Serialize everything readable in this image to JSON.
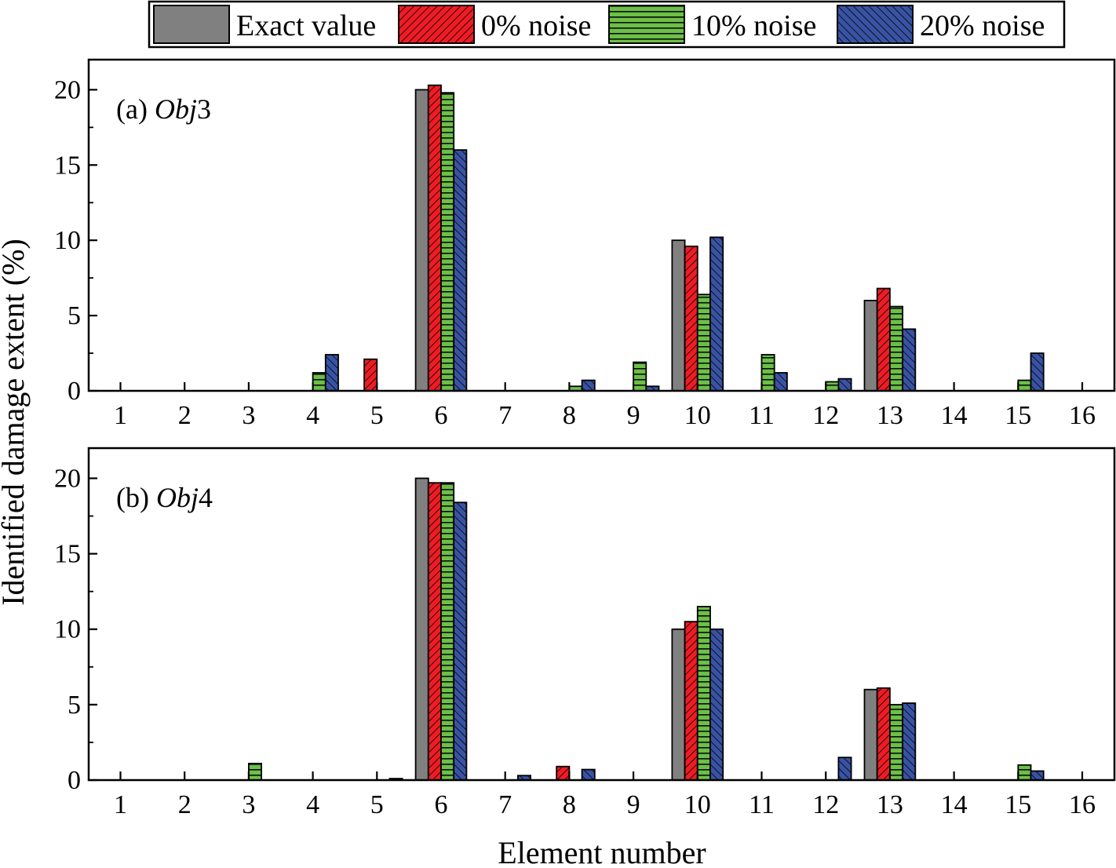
{
  "chart_data": [
    {
      "type": "bar",
      "panel_label_prefix": "(a)",
      "panel_label_obj": "Obj",
      "panel_label_num": "3",
      "categories": [
        "1",
        "2",
        "3",
        "4",
        "5",
        "6",
        "7",
        "8",
        "9",
        "10",
        "11",
        "12",
        "13",
        "14",
        "15",
        "16"
      ],
      "series": [
        {
          "name": "Exact value",
          "values": [
            0,
            0,
            0,
            0,
            0,
            20,
            0,
            0,
            0,
            10,
            0,
            0,
            6,
            0,
            0,
            0
          ]
        },
        {
          "name": "0% noise",
          "values": [
            0,
            0,
            0,
            0,
            2.1,
            20.3,
            0,
            0,
            0,
            9.6,
            0,
            0,
            6.8,
            0,
            0,
            0
          ]
        },
        {
          "name": "10% noise",
          "values": [
            0,
            0,
            0,
            1.2,
            0,
            19.8,
            0,
            0.3,
            1.9,
            6.4,
            2.4,
            0.6,
            5.6,
            0,
            0.7,
            0
          ]
        },
        {
          "name": "20% noise",
          "values": [
            0,
            0,
            0,
            2.4,
            0,
            16.0,
            0,
            0.7,
            0.3,
            10.2,
            1.2,
            0.8,
            4.1,
            0,
            2.5,
            0
          ]
        }
      ],
      "ylim": [
        0,
        22
      ],
      "yticks": [
        "0",
        "5",
        "10",
        "15",
        "20"
      ]
    },
    {
      "type": "bar",
      "panel_label_prefix": "(b)",
      "panel_label_obj": "Obj",
      "panel_label_num": "4",
      "categories": [
        "1",
        "2",
        "3",
        "4",
        "5",
        "6",
        "7",
        "8",
        "9",
        "10",
        "11",
        "12",
        "13",
        "14",
        "15",
        "16"
      ],
      "series": [
        {
          "name": "Exact value",
          "values": [
            0,
            0,
            0,
            0,
            0,
            20,
            0,
            0,
            0,
            10,
            0,
            0,
            6,
            0,
            0,
            0
          ]
        },
        {
          "name": "0% noise",
          "values": [
            0,
            0,
            0,
            0,
            0,
            19.7,
            0,
            0.9,
            0,
            10.5,
            0,
            0,
            6.1,
            0,
            0,
            0
          ]
        },
        {
          "name": "10% noise",
          "values": [
            0,
            0,
            1.1,
            0,
            0,
            19.7,
            0,
            0,
            0,
            11.5,
            0,
            0,
            5.0,
            0,
            1.0,
            0
          ]
        },
        {
          "name": "20% noise",
          "values": [
            0,
            0,
            0,
            0,
            0.1,
            18.4,
            0.3,
            0.7,
            0,
            10.0,
            0,
            1.5,
            5.1,
            0,
            0.6,
            0
          ]
        }
      ],
      "ylim": [
        0,
        22
      ],
      "yticks": [
        "0",
        "5",
        "10",
        "15",
        "20"
      ]
    }
  ],
  "xlabel": "Element number",
  "ylabel": "Identified damage extent (%)",
  "legend": {
    "items": [
      {
        "label": "Exact value",
        "color": "#808080",
        "pattern": "none"
      },
      {
        "label": "0% noise",
        "color": "#ee1c25",
        "pattern": "diag-right"
      },
      {
        "label": "10% noise",
        "color": "#6cbf47",
        "pattern": "horizontal"
      },
      {
        "label": "20% noise",
        "color": "#3953a4",
        "pattern": "diag-left"
      }
    ]
  }
}
